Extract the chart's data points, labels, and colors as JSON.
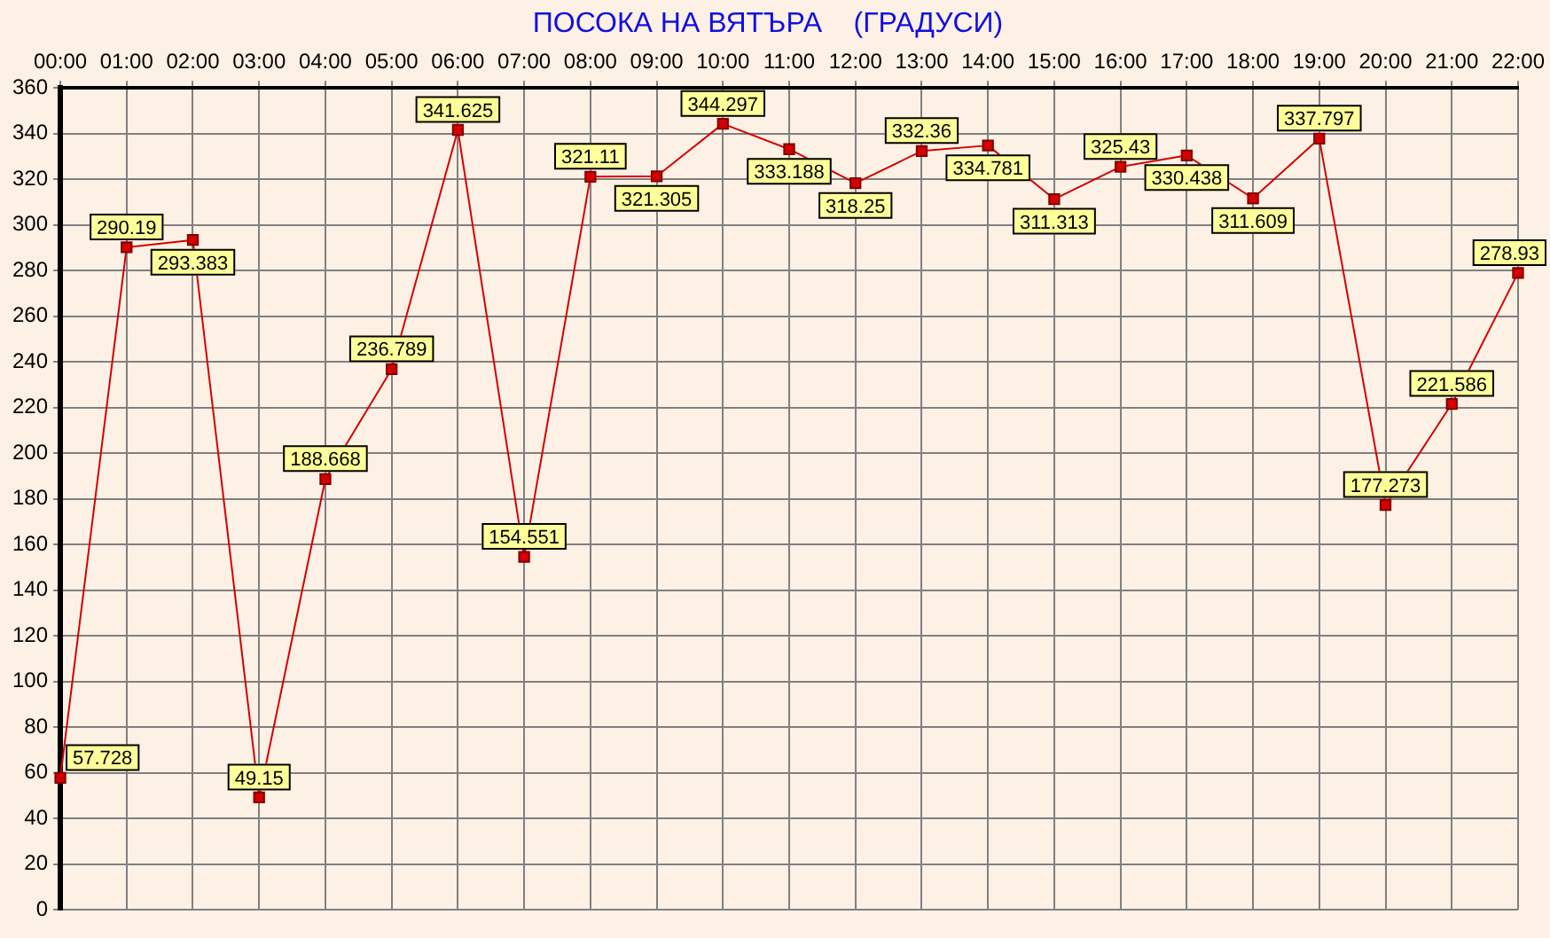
{
  "chart_data": {
    "type": "line",
    "title": "ПОСОКА НА ВЯТЪРА    (ГРАДУСИ)",
    "categories": [
      "00:00",
      "01:00",
      "02:00",
      "03:00",
      "04:00",
      "05:00",
      "06:00",
      "07:00",
      "08:00",
      "09:00",
      "10:00",
      "11:00",
      "12:00",
      "13:00",
      "14:00",
      "15:00",
      "16:00",
      "17:00",
      "18:00",
      "19:00",
      "20:00",
      "21:00",
      "22:00"
    ],
    "series": [
      {
        "color": "#d40000",
        "values": [
          57.728,
          290.19,
          293.383,
          49.15,
          188.668,
          236.789,
          341.625,
          154.551,
          321.11,
          321.305,
          344.297,
          333.188,
          318.25,
          332.36,
          334.781,
          311.313,
          325.43,
          330.438,
          311.609,
          337.797,
          177.273,
          221.586,
          278.93
        ]
      }
    ],
    "ylim": [
      0,
      360
    ],
    "yticks": [
      0,
      20,
      40,
      60,
      80,
      100,
      120,
      140,
      160,
      180,
      200,
      220,
      240,
      260,
      280,
      300,
      320,
      340,
      360
    ],
    "grid": true,
    "legend": false,
    "marker": "square",
    "line_style": "solid",
    "data_labels": true
  }
}
